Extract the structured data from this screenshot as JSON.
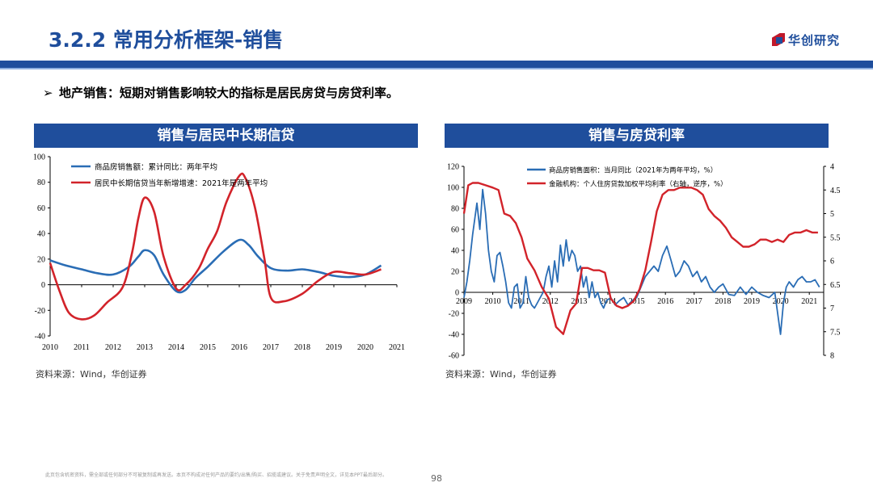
{
  "slide": {
    "title": "3.2.2 常用分析框架-销售",
    "logo_text": "华创研究",
    "bullet": "地产销售：短期对销售影响较大的指标是居民房贷与房贷利率。",
    "bullet_icon": "arrow-right-icon",
    "footer": "此页包含机密资料，需全部或任何部分不可被复制或再发送。本页不构成对任何产品的要约/出售/购买、招揽或建议。关于免责声明全文，详见本PPT最后部分。",
    "page_number": "98",
    "colors": {
      "brand_blue": "#1f4e9c",
      "series_blue": "#2a6db5",
      "series_red": "#d2232a"
    }
  },
  "left_chart": {
    "header": "销售与居民中长期信贷",
    "source": "资料来源：Wind，华创证券"
  },
  "right_chart": {
    "header": "销售与房贷利率",
    "source": "资料来源：Wind，华创证券"
  },
  "chart_data": [
    {
      "type": "line",
      "title": "销售与居民中长期信贷",
      "x_ticks": [
        "2010",
        "2011",
        "2012",
        "2013",
        "2014",
        "2015",
        "2016",
        "2017",
        "2018",
        "2019",
        "2020",
        "2021"
      ],
      "xlim": [
        2010,
        2021
      ],
      "ylim": [
        -40,
        100
      ],
      "y_ticks": [
        "100",
        "80",
        "60",
        "40",
        "20",
        "0",
        "-20",
        "-40"
      ],
      "grid": false,
      "legend": "top-left",
      "series": [
        {
          "name": "商品房销售额：累计同比：两年平均",
          "color": "#2a6db5",
          "x": [
            2010,
            2010.5,
            2011,
            2011.5,
            2012,
            2012.5,
            2012.8,
            2013,
            2013.3,
            2013.6,
            2014,
            2014.3,
            2014.6,
            2015,
            2015.5,
            2016,
            2016.3,
            2016.6,
            2017,
            2017.5,
            2018,
            2018.5,
            2019,
            2019.5,
            2020,
            2020.5
          ],
          "values": [
            19,
            15,
            12,
            9,
            8,
            14,
            22,
            27,
            23,
            8,
            -5,
            -4,
            5,
            14,
            26,
            35,
            31,
            22,
            13,
            11,
            12,
            10,
            7,
            6,
            8,
            15
          ]
        },
        {
          "name": "居民中长期信贷当年新增增速：2021年是两年平均",
          "color": "#d2232a",
          "x": [
            2010,
            2010.3,
            2010.6,
            2011,
            2011.4,
            2011.8,
            2012.3,
            2012.6,
            2012.8,
            2013,
            2013.3,
            2013.6,
            2014,
            2014.3,
            2014.7,
            2015,
            2015.3,
            2015.6,
            2016,
            2016.2,
            2016.5,
            2016.8,
            2017,
            2017.4,
            2018,
            2018.5,
            2019,
            2019.5,
            2020,
            2020.5
          ],
          "values": [
            17,
            -5,
            -22,
            -27,
            -24,
            -14,
            -2,
            25,
            52,
            68,
            57,
            22,
            -3,
            0,
            12,
            28,
            42,
            65,
            85,
            83,
            60,
            20,
            -10,
            -13,
            -7,
            3,
            10,
            9,
            8,
            12
          ]
        }
      ]
    },
    {
      "type": "line",
      "title": "销售与房贷利率",
      "x_ticks": [
        "2009",
        "2010",
        "2011",
        "2012",
        "2013",
        "2014",
        "2015",
        "2016",
        "2017",
        "2018",
        "2019",
        "2020",
        "2021"
      ],
      "xlim": [
        2009,
        2021.5
      ],
      "ylim": [
        -60,
        120
      ],
      "y_ticks": [
        "120",
        "100",
        "80",
        "60",
        "40",
        "20",
        "0",
        "-20",
        "-40",
        "-60"
      ],
      "y2lim": [
        4,
        8
      ],
      "y2_reversed": true,
      "y2_ticks": [
        "4",
        "4.5",
        "5",
        "5.5",
        "6",
        "6.5",
        "7",
        "7.5",
        "8"
      ],
      "legend": "top",
      "series": [
        {
          "name": "商品房销售面积：当月同比（2021年为两年平均，%）",
          "color": "#2a6db5",
          "axis": "left",
          "x": [
            2009,
            2009.1,
            2009.2,
            2009.3,
            2009.45,
            2009.55,
            2009.65,
            2009.75,
            2009.85,
            2009.95,
            2010.05,
            2010.15,
            2010.25,
            2010.35,
            2010.45,
            2010.55,
            2010.65,
            2010.75,
            2010.85,
            2010.95,
            2011.05,
            2011.15,
            2011.25,
            2011.35,
            2011.45,
            2011.55,
            2011.65,
            2011.75,
            2011.85,
            2011.95,
            2012.05,
            2012.15,
            2012.25,
            2012.35,
            2012.45,
            2012.55,
            2012.65,
            2012.75,
            2012.85,
            2012.95,
            2013.05,
            2013.15,
            2013.25,
            2013.35,
            2013.45,
            2013.55,
            2013.65,
            2013.75,
            2013.85,
            2013.95,
            2014.1,
            2014.25,
            2014.4,
            2014.55,
            2014.7,
            2014.85,
            2015,
            2015.15,
            2015.3,
            2015.45,
            2015.6,
            2015.75,
            2015.9,
            2016.05,
            2016.2,
            2016.35,
            2016.5,
            2016.65,
            2016.8,
            2016.95,
            2017.1,
            2017.25,
            2017.4,
            2017.55,
            2017.7,
            2017.85,
            2018,
            2018.2,
            2018.4,
            2018.6,
            2018.8,
            2019,
            2019.2,
            2019.4,
            2019.6,
            2019.8,
            2020,
            2020.1,
            2020.2,
            2020.3,
            2020.45,
            2020.6,
            2020.75,
            2020.9,
            2021.05,
            2021.2,
            2021.35
          ],
          "values": [
            -5,
            10,
            30,
            55,
            85,
            60,
            98,
            75,
            40,
            20,
            10,
            35,
            38,
            25,
            10,
            -10,
            -15,
            5,
            8,
            -15,
            -10,
            15,
            -5,
            -12,
            -15,
            -10,
            -5,
            0,
            15,
            25,
            5,
            30,
            10,
            45,
            25,
            50,
            30,
            40,
            35,
            20,
            25,
            5,
            15,
            -5,
            10,
            -5,
            0,
            -10,
            -15,
            -8,
            -5,
            -12,
            -8,
            -5,
            -12,
            -8,
            -5,
            5,
            15,
            20,
            25,
            20,
            35,
            44,
            30,
            15,
            20,
            30,
            25,
            15,
            20,
            10,
            15,
            5,
            0,
            5,
            8,
            -2,
            -3,
            5,
            -2,
            5,
            0,
            -3,
            -5,
            0,
            -40,
            -10,
            5,
            10,
            5,
            12,
            15,
            10,
            10,
            12,
            5
          ]
        },
        {
          "name": "金融机构：个人住房贷款加权平均利率（右轴，逆序，%）",
          "color": "#d2232a",
          "axis": "right",
          "x": [
            2009,
            2009.15,
            2009.3,
            2009.5,
            2009.75,
            2010,
            2010.2,
            2010.4,
            2010.6,
            2010.8,
            2011,
            2011.2,
            2011.45,
            2011.7,
            2011.95,
            2012.2,
            2012.45,
            2012.7,
            2012.9,
            2013.1,
            2013.3,
            2013.5,
            2013.7,
            2013.9,
            2014.1,
            2014.3,
            2014.5,
            2014.7,
            2014.9,
            2015.1,
            2015.3,
            2015.5,
            2015.7,
            2015.9,
            2016.1,
            2016.3,
            2016.5,
            2016.7,
            2016.9,
            2017.1,
            2017.3,
            2017.5,
            2017.7,
            2017.9,
            2018.1,
            2018.3,
            2018.5,
            2018.7,
            2018.9,
            2019.1,
            2019.3,
            2019.5,
            2019.7,
            2019.9,
            2020.1,
            2020.3,
            2020.5,
            2020.7,
            2020.9,
            2021.1,
            2021.3
          ],
          "values": [
            5,
            4.4,
            4.35,
            4.35,
            4.4,
            4.45,
            4.5,
            5,
            5.05,
            5.2,
            5.5,
            5.95,
            6.2,
            6.55,
            6.8,
            7.4,
            7.55,
            7.05,
            6.9,
            6.15,
            6.15,
            6.2,
            6.2,
            6.25,
            6.8,
            6.95,
            7,
            6.95,
            6.85,
            6.6,
            6.2,
            5.6,
            4.95,
            4.6,
            4.5,
            4.5,
            4.45,
            4.45,
            4.45,
            4.5,
            4.6,
            4.9,
            5.05,
            5.15,
            5.3,
            5.5,
            5.6,
            5.7,
            5.7,
            5.65,
            5.55,
            5.55,
            5.6,
            5.55,
            5.6,
            5.45,
            5.4,
            5.4,
            5.35,
            5.4,
            5.4
          ]
        }
      ]
    }
  ]
}
